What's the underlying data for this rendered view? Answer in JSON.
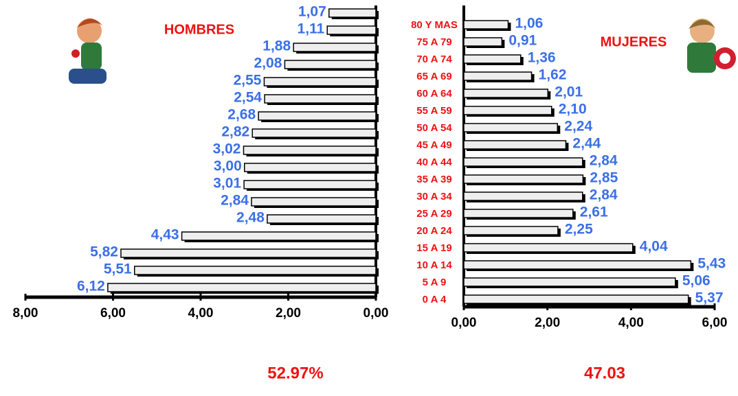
{
  "chart_data": {
    "type": "pyramid",
    "categories": [
      "80 Y MAS",
      "75 A 79",
      "70 A 74",
      "65 A 69",
      "60 A 64",
      "55 A 59",
      "50 A 54",
      "45 A 49",
      "40 A 44",
      "35 A 39",
      "30 A 34",
      "25 A 29",
      "20 A 24",
      "15 A 19",
      "10 A 14",
      "5 A 9",
      "0 A 4"
    ],
    "series": [
      {
        "name": "HOMBRES",
        "color": "#eeeeee",
        "side": "left",
        "values": [
          1.07,
          1.11,
          1.88,
          2.08,
          2.55,
          2.54,
          2.68,
          2.82,
          3.02,
          3.0,
          3.01,
          2.84,
          2.48,
          4.43,
          5.82,
          5.51,
          6.12
        ],
        "value_labels": [
          "1,07",
          "1,11",
          "1,88",
          "2,08",
          "2,55",
          "2,54",
          "2,68",
          "2,82",
          "3,02",
          "3,00",
          "3,01",
          "2,84",
          "2,48",
          "4,43",
          "5,82",
          "5,51",
          "6,12"
        ],
        "xlim": [
          8,
          0
        ],
        "xticks": [
          {
            "value": 8,
            "label": "8,00"
          },
          {
            "value": 6,
            "label": "6,00"
          },
          {
            "value": 4,
            "label": "4,00"
          },
          {
            "value": 2,
            "label": "2,00"
          },
          {
            "value": 0,
            "label": "0,00"
          }
        ],
        "share": "52.97%"
      },
      {
        "name": "MUJERES",
        "color": "#eeeeee",
        "side": "right",
        "values": [
          1.06,
          0.91,
          1.36,
          1.62,
          2.01,
          2.1,
          2.24,
          2.44,
          2.84,
          2.85,
          2.84,
          2.61,
          2.25,
          4.04,
          5.43,
          5.06,
          5.37
        ],
        "value_labels": [
          "1,06",
          "0,91",
          "1,36",
          "1,62",
          "2,01",
          "2,10",
          "2,24",
          "2,44",
          "2,84",
          "2,85",
          "2,84",
          "2,61",
          "2,25",
          "4,04",
          "5,43",
          "5,06",
          "5,37"
        ],
        "xlim": [
          0,
          6
        ],
        "xticks": [
          {
            "value": 0,
            "label": "0,00"
          },
          {
            "value": 2,
            "label": "2,00"
          },
          {
            "value": 4,
            "label": "4,00"
          },
          {
            "value": 6,
            "label": "6,00"
          }
        ],
        "share": "47.03"
      }
    ],
    "label_color": "#3b6fe8",
    "category_color": "#ee1111"
  }
}
